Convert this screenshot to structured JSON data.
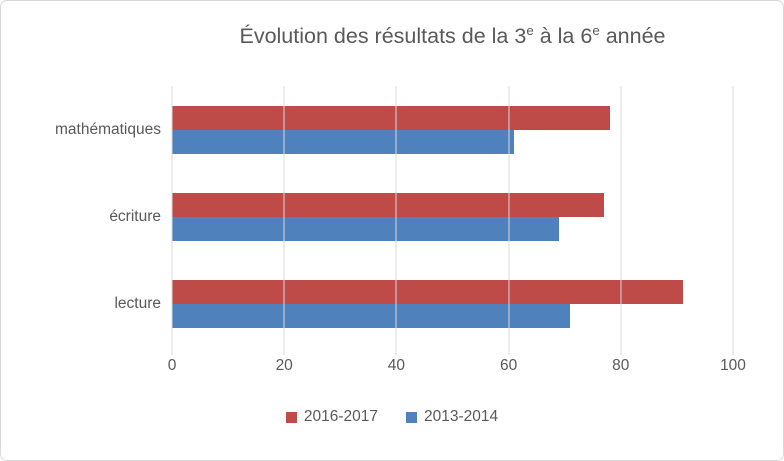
{
  "title": {
    "prefix": "Évolution des résultats de la 3",
    "sup_1": "e",
    "middle": " à la 6",
    "sup_2": "e",
    "suffix": " année"
  },
  "chart_data": {
    "type": "bar",
    "orientation": "horizontal",
    "title": "Évolution des résultats de la 3e à la 6e année",
    "categories": [
      "mathématiques",
      "écriture",
      "lecture"
    ],
    "series": [
      {
        "name": "2016-2017",
        "color": "#be4b48",
        "values": [
          78,
          77,
          91
        ]
      },
      {
        "name": "2013-2014",
        "color": "#4f81bd",
        "values": [
          61,
          69,
          71
        ]
      }
    ],
    "xlabel": "",
    "ylabel": "",
    "xlim": [
      0,
      100
    ],
    "xticks": [
      0,
      20,
      40,
      60,
      80,
      100
    ],
    "grid": "vertical",
    "legend_position": "bottom"
  },
  "colors": {
    "text": "#595959",
    "gridline": "#d9d9d9",
    "border": "#d9d9d9",
    "background": "#ffffff"
  },
  "legend": {
    "items": [
      {
        "label": "2016-2017",
        "color": "#be4b48"
      },
      {
        "label": "2013-2014",
        "color": "#4f81bd"
      }
    ]
  }
}
